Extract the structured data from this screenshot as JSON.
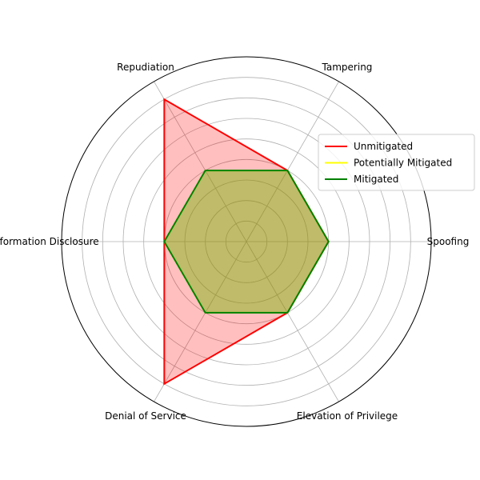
{
  "chart_data": {
    "type": "radar",
    "categories": [
      "Spoofing",
      "Tampering",
      "Repudiation",
      "Information Disclosure",
      "Denial of Service",
      "Elevation of Privilege"
    ],
    "series": [
      {
        "name": "Unmitigated",
        "color": "#ff0000",
        "fill": "#ff0000",
        "fill_opacity": 0.25,
        "values": [
          2,
          2,
          4,
          2,
          4,
          2
        ]
      },
      {
        "name": "Potentially Mitigated",
        "color": "#ffff00",
        "fill": "#ffff00",
        "fill_opacity": 0.25,
        "values": [
          2,
          2,
          2,
          2,
          2,
          2
        ]
      },
      {
        "name": "Mitigated",
        "color": "#008000",
        "fill": "#008000",
        "fill_opacity": 0.25,
        "values": [
          2,
          2,
          2,
          2,
          2,
          2
        ]
      }
    ],
    "rlim": [
      0,
      4.5
    ],
    "radial_grid": [
      0.5,
      1,
      1.5,
      2,
      2.5,
      3,
      3.5,
      4
    ],
    "grid": true,
    "legend_position": "right"
  }
}
